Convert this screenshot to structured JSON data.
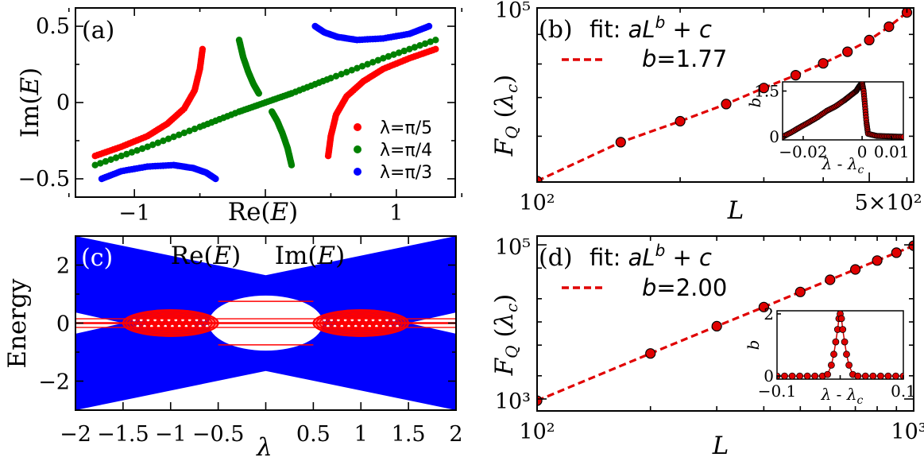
{
  "chart_data": [
    {
      "panel": "(a)",
      "type": "scatter",
      "xlabel": "Re(E)",
      "ylabel": "Im(E)",
      "xlim": [
        -1.45,
        1.45
      ],
      "ylim": [
        -0.62,
        0.62
      ],
      "xticks": [
        -1,
        0,
        1
      ],
      "xtick_labels": [
        "−1",
        "",
        "1"
      ],
      "yticks": [
        -0.5,
        0,
        0.5
      ],
      "ytick_labels": [
        "−0.5",
        "0",
        "0.5"
      ],
      "legend": {
        "position": "lower-right",
        "entries": [
          "λ=π/5",
          "λ=π/4",
          "λ=π/3"
        ]
      },
      "series": [
        {
          "name": "λ=π/5",
          "color": "#ff0000",
          "branches": [
            {
              "x": [
                -1.3,
                -1.1,
                -0.9,
                -0.75,
                -0.62,
                -0.54,
                -0.5,
                -0.48
              ],
              "y": [
                -0.35,
                -0.29,
                -0.22,
                -0.14,
                -0.04,
                0.08,
                0.22,
                0.35
              ]
            },
            {
              "x": [
                0.48,
                0.5,
                0.54,
                0.62,
                0.75,
                0.9,
                1.1,
                1.3
              ],
              "y": [
                -0.35,
                -0.22,
                -0.08,
                0.04,
                0.14,
                0.22,
                0.29,
                0.35
              ]
            }
          ]
        },
        {
          "name": "λ=π/4",
          "color": "#008000",
          "branches": [
            {
              "x": [
                -1.3,
                -0.9,
                -0.5,
                -0.2,
                0.0,
                0.2,
                0.5,
                0.9,
                1.3
              ],
              "y": [
                -0.41,
                -0.29,
                -0.16,
                -0.06,
                0.0,
                0.06,
                0.16,
                0.29,
                0.41
              ]
            },
            {
              "x": [
                -0.2,
                -0.17,
                -0.13,
                -0.09,
                -0.05
              ],
              "y": [
                0.41,
                0.3,
                0.2,
                0.12,
                0.06
              ]
            },
            {
              "x": [
                0.05,
                0.09,
                0.13,
                0.17,
                0.2
              ],
              "y": [
                -0.06,
                -0.12,
                -0.2,
                -0.3,
                -0.41
              ]
            }
          ]
        },
        {
          "name": "λ=π/3",
          "color": "#0000ff",
          "branches": [
            {
              "x": [
                -1.25,
                -1.1,
                -0.9,
                -0.7,
                -0.55,
                -0.45,
                -0.38
              ],
              "y": [
                -0.5,
                -0.45,
                -0.42,
                -0.41,
                -0.43,
                -0.46,
                -0.5
              ]
            },
            {
              "x": [
                0.38,
                0.45,
                0.55,
                0.7,
                0.9,
                1.1,
                1.25
              ],
              "y": [
                0.5,
                0.46,
                0.43,
                0.41,
                0.42,
                0.45,
                0.5
              ]
            }
          ]
        }
      ]
    },
    {
      "panel": "(b)",
      "type": "scatter",
      "scale": "log-log",
      "xlabel": "L",
      "ylabel": "F_Q(λ_c)",
      "xlim": [
        100,
        620
      ],
      "ylim": [
        50000,
        100000
      ],
      "xtick_labels": [
        "10²",
        "5×10²"
      ],
      "ytick_labels": [
        "10⁵"
      ],
      "fit_label": "fit: aL^b + c",
      "fit_param": "b=1.77",
      "series": [
        {
          "name": "data",
          "color": "#e00000",
          "x": [
            100,
            150,
            200,
            250,
            300,
            350,
            400,
            450,
            500,
            550,
            600
          ],
          "y": [
            50200,
            58600,
            63700,
            68200,
            72700,
            76500,
            80200,
            84000,
            88000,
            92800,
            98200
          ]
        }
      ],
      "inset": {
        "xlabel": "λ - λc",
        "ylabel": "b",
        "xlim": [
          -0.027,
          0.014
        ],
        "ylim": [
          -0.1,
          1.8
        ],
        "xtick_labels": [
          "−0.02",
          "0",
          "0.01"
        ],
        "ytick_labels": [
          "0",
          "1.5"
        ],
        "x": [
          -0.027,
          -0.024,
          -0.021,
          -0.018,
          -0.015,
          -0.012,
          -0.009,
          -0.006,
          -0.004,
          -0.002,
          -0.001,
          0.0,
          0.0005,
          0.001,
          0.0015,
          0.002,
          0.005,
          0.008,
          0.011,
          0.014
        ],
        "y": [
          0.0,
          0.15,
          0.32,
          0.48,
          0.65,
          0.85,
          1.0,
          1.2,
          1.35,
          1.5,
          1.65,
          1.77,
          1.5,
          1.0,
          0.45,
          0.1,
          0.03,
          0.02,
          0.01,
          0.0
        ]
      }
    },
    {
      "panel": "(c)",
      "type": "area",
      "xlabel": "λ",
      "ylabel": "Energy",
      "xlim": [
        -2,
        2
      ],
      "ylim": [
        -3,
        3
      ],
      "xtick_labels": [
        "−2",
        "−1.5",
        "−1",
        "−0.5",
        "",
        "0.5",
        "1",
        "1.5",
        "2"
      ],
      "ytick_labels": [
        "−2",
        "0",
        "2"
      ],
      "legend_labels": [
        "Re(E)",
        "Im(E)"
      ],
      "series": [
        {
          "name": "Re(E)",
          "color": "#0000ff"
        },
        {
          "name": "Im(E)",
          "color": "#ff0000"
        }
      ]
    },
    {
      "panel": "(d)",
      "type": "scatter",
      "scale": "log-log",
      "xlabel": "L",
      "ylabel": "F_Q(λ_c)",
      "xlim": [
        100,
        1000
      ],
      "ylim": [
        700,
        130000
      ],
      "xtick_labels": [
        "10²",
        "10³"
      ],
      "ytick_labels": [
        "10³",
        "10⁵"
      ],
      "fit_label": "fit: aL^b + c",
      "fit_param": "b=2.00",
      "series": [
        {
          "name": "data",
          "color": "#e00000",
          "x": [
            100,
            200,
            300,
            400,
            500,
            600,
            700,
            800,
            900,
            1000
          ],
          "y": [
            950,
            3900,
            8800,
            15600,
            24500,
            35200,
            47900,
            62500,
            79100,
            97600
          ]
        }
      ],
      "inset": {
        "xlabel": "λ - λc",
        "ylabel": "b",
        "xlim": [
          -0.1,
          0.1
        ],
        "ylim": [
          -0.1,
          2.1
        ],
        "xtick_labels": [
          "−0.1",
          "",
          "0.1"
        ],
        "ytick_labels": [
          "0",
          "2"
        ],
        "x": [
          -0.1,
          -0.088,
          -0.076,
          -0.064,
          -0.052,
          -0.04,
          -0.028,
          -0.02,
          -0.014,
          -0.01,
          -0.007,
          -0.004,
          -0.002,
          0.0,
          0.002,
          0.004,
          0.007,
          0.01,
          0.014,
          0.02,
          0.028,
          0.04,
          0.052,
          0.064,
          0.076,
          0.088,
          0.1
        ],
        "y": [
          0,
          0,
          0,
          0,
          0,
          0,
          0,
          0.05,
          0.35,
          0.7,
          1.1,
          1.5,
          1.85,
          2.0,
          1.85,
          1.5,
          1.1,
          0.7,
          0.35,
          0.05,
          0,
          0,
          0,
          0,
          0,
          0,
          0
        ]
      }
    }
  ]
}
